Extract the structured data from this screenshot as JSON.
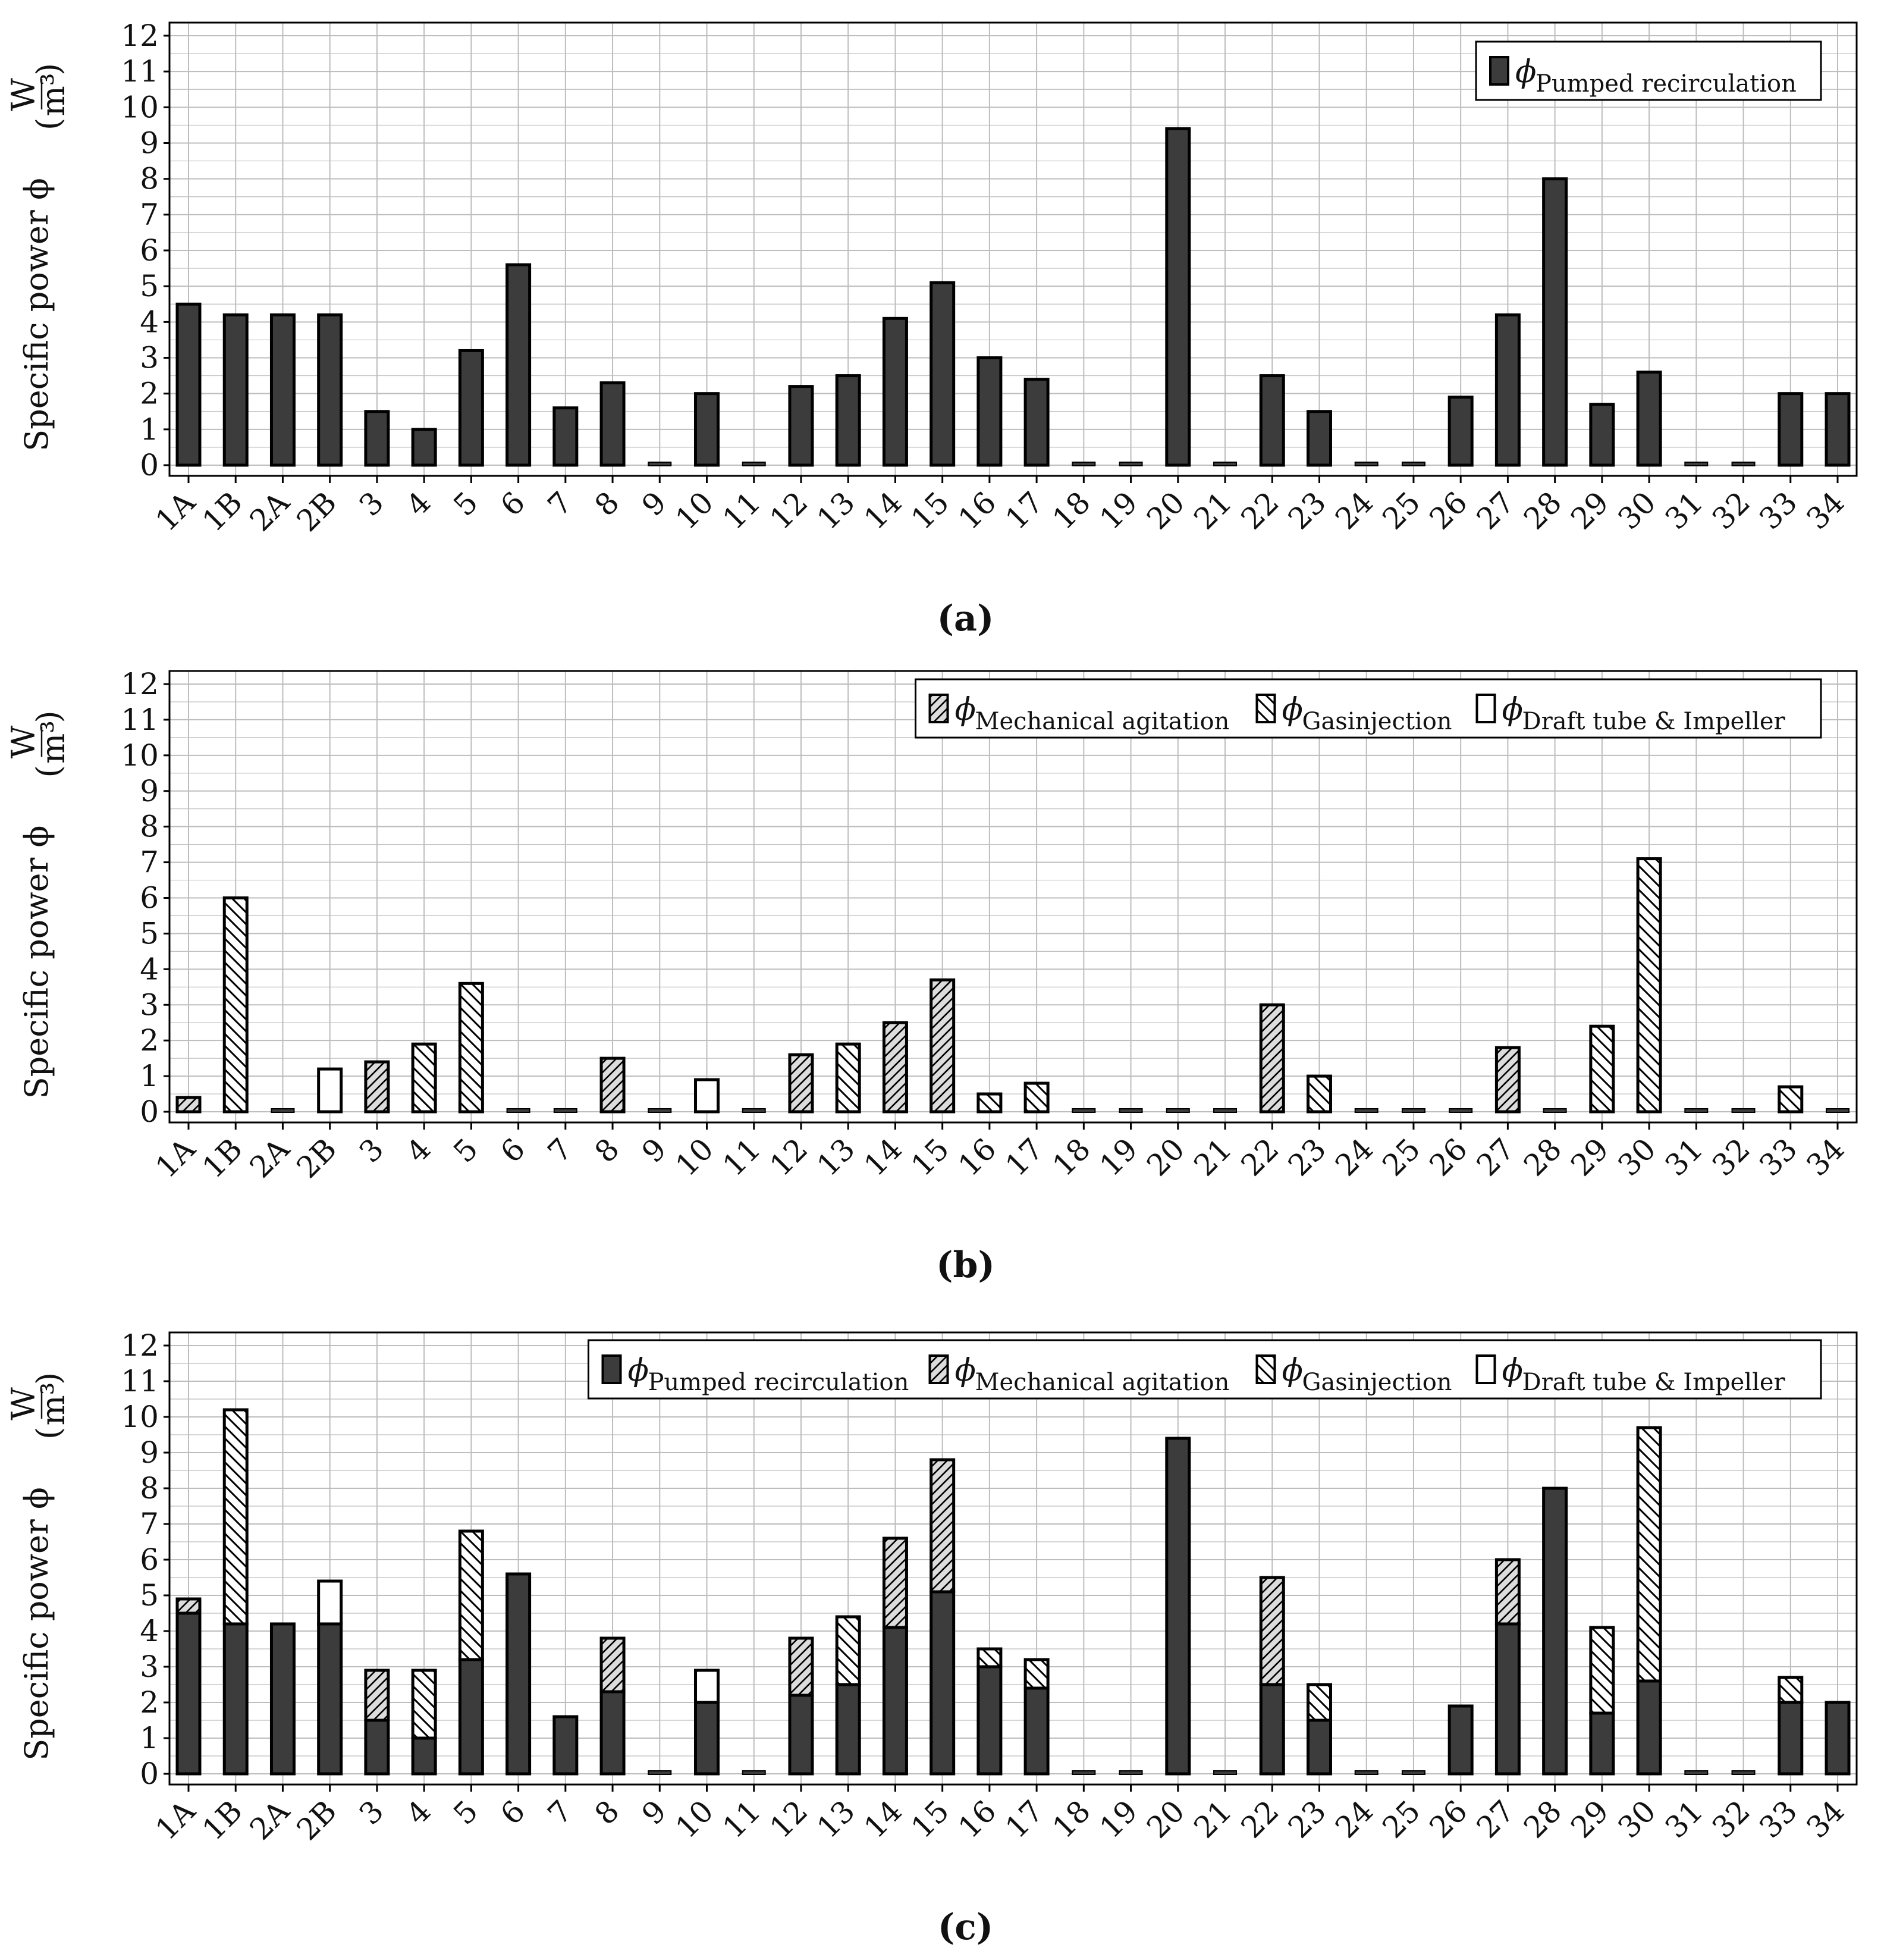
{
  "colors": {
    "pumped": "#3c3c3c",
    "mechanical_fill": "#dcdcdc",
    "gas_fill": "#ffffff",
    "draft_fill": "#ffffff",
    "grid": "#bdbdbd",
    "edge": "#000000"
  },
  "axis_symbol": "Specific power ϕ",
  "unit_numerator": "W",
  "unit_denominator": "m³",
  "chart_data": [
    {
      "type": "bar",
      "subfigure": "(a)",
      "stacked": false,
      "ylabel": "Specific power ϕ (W/m³)",
      "ylim": [
        0,
        12
      ],
      "yticks": [
        "0",
        "1",
        "2",
        "3",
        "4",
        "5",
        "6",
        "7",
        "8",
        "9",
        "10",
        "11",
        "12"
      ],
      "grid": true,
      "legend_position": "top-right",
      "categories": [
        "1A",
        "1B",
        "2A",
        "2B",
        "3",
        "4",
        "5",
        "6",
        "7",
        "8",
        "9",
        "10",
        "11",
        "12",
        "13",
        "14",
        "15",
        "16",
        "17",
        "18",
        "19",
        "20",
        "21",
        "22",
        "23",
        "24",
        "25",
        "26",
        "27",
        "28",
        "29",
        "30",
        "31",
        "32",
        "33",
        "34"
      ],
      "series": [
        {
          "key": "pumped",
          "symbol": "ϕ",
          "name": "Pumped recirculation",
          "values": [
            4.5,
            4.2,
            4.2,
            4.2,
            1.5,
            1.0,
            3.2,
            5.6,
            1.6,
            2.3,
            0,
            2.0,
            0,
            2.2,
            2.5,
            4.1,
            5.1,
            3.0,
            2.4,
            0,
            0,
            9.4,
            0,
            2.5,
            1.5,
            0,
            0,
            1.9,
            4.2,
            8.0,
            1.7,
            2.6,
            0,
            0,
            2.0,
            2.0
          ]
        }
      ]
    },
    {
      "type": "bar",
      "subfigure": "(b)",
      "stacked": true,
      "ylabel": "Specific power ϕ (W/m³)",
      "ylim": [
        0,
        12
      ],
      "yticks": [
        "0",
        "1",
        "2",
        "3",
        "4",
        "5",
        "6",
        "7",
        "8",
        "9",
        "10",
        "11",
        "12"
      ],
      "grid": true,
      "legend_position": "top-right",
      "categories": [
        "1A",
        "1B",
        "2A",
        "2B",
        "3",
        "4",
        "5",
        "6",
        "7",
        "8",
        "9",
        "10",
        "11",
        "12",
        "13",
        "14",
        "15",
        "16",
        "17",
        "18",
        "19",
        "20",
        "21",
        "22",
        "23",
        "24",
        "25",
        "26",
        "27",
        "28",
        "29",
        "30",
        "31",
        "32",
        "33",
        "34"
      ],
      "series": [
        {
          "key": "mechanical",
          "symbol": "ϕ",
          "name": "Mechanical agitation",
          "values": [
            0.4,
            0,
            0,
            0,
            1.4,
            0,
            0,
            0,
            0,
            1.5,
            0,
            0,
            0,
            1.6,
            0,
            2.5,
            3.7,
            0,
            0,
            0,
            0,
            0,
            0,
            3.0,
            0,
            0,
            0,
            0,
            1.8,
            0,
            0,
            0,
            0,
            0,
            0,
            0
          ]
        },
        {
          "key": "gas",
          "symbol": "ϕ",
          "name": "Gasinjection",
          "values": [
            0,
            6.0,
            0,
            0,
            0,
            1.9,
            3.6,
            0,
            0,
            0,
            0,
            0,
            0,
            0,
            1.9,
            0,
            0,
            0.5,
            0.8,
            0,
            0,
            0,
            0,
            0,
            1.0,
            0,
            0,
            0,
            0,
            0,
            2.4,
            7.1,
            0,
            0,
            0.7,
            0
          ]
        },
        {
          "key": "draft",
          "symbol": "ϕ",
          "name": "Draft tube & Impeller",
          "values": [
            0,
            0,
            0,
            1.2,
            0,
            0,
            0,
            0,
            0,
            0,
            0,
            0.9,
            0,
            0,
            0,
            0,
            0,
            0,
            0,
            0,
            0,
            0,
            0,
            0,
            0,
            0,
            0,
            0,
            0,
            0,
            0,
            0,
            0,
            0,
            0,
            0
          ]
        }
      ]
    },
    {
      "type": "bar",
      "subfigure": "(c)",
      "stacked": true,
      "ylabel": "Specific power ϕ (W/m³)",
      "ylim": [
        0,
        12
      ],
      "yticks": [
        "0",
        "1",
        "2",
        "3",
        "4",
        "5",
        "6",
        "7",
        "8",
        "9",
        "10",
        "11",
        "12"
      ],
      "grid": true,
      "legend_position": "top-right",
      "categories": [
        "1A",
        "1B",
        "2A",
        "2B",
        "3",
        "4",
        "5",
        "6",
        "7",
        "8",
        "9",
        "10",
        "11",
        "12",
        "13",
        "14",
        "15",
        "16",
        "17",
        "18",
        "19",
        "20",
        "21",
        "22",
        "23",
        "24",
        "25",
        "26",
        "27",
        "28",
        "29",
        "30",
        "31",
        "32",
        "33",
        "34"
      ],
      "series": [
        {
          "key": "pumped",
          "symbol": "ϕ",
          "name": "Pumped recirculation",
          "values": [
            4.5,
            4.2,
            4.2,
            4.2,
            1.5,
            1.0,
            3.2,
            5.6,
            1.6,
            2.3,
            0,
            2.0,
            0,
            2.2,
            2.5,
            4.1,
            5.1,
            3.0,
            2.4,
            0,
            0,
            9.4,
            0,
            2.5,
            1.5,
            0,
            0,
            1.9,
            4.2,
            8.0,
            1.7,
            2.6,
            0,
            0,
            2.0,
            2.0
          ]
        },
        {
          "key": "mechanical",
          "symbol": "ϕ",
          "name": "Mechanical agitation",
          "values": [
            0.4,
            0,
            0,
            0,
            1.4,
            0,
            0,
            0,
            0,
            1.5,
            0,
            0,
            0,
            1.6,
            0,
            2.5,
            3.7,
            0,
            0,
            0,
            0,
            0,
            0,
            3.0,
            0,
            0,
            0,
            0,
            1.8,
            0,
            0,
            0,
            0,
            0,
            0,
            0
          ]
        },
        {
          "key": "gas",
          "symbol": "ϕ",
          "name": "Gasinjection",
          "values": [
            0,
            6.0,
            0,
            0,
            0,
            1.9,
            3.6,
            0,
            0,
            0,
            0,
            0,
            0,
            0,
            1.9,
            0,
            0,
            0.5,
            0.8,
            0,
            0,
            0,
            0,
            0,
            1.0,
            0,
            0,
            0,
            0,
            0,
            2.4,
            7.1,
            0,
            0,
            0.7,
            0
          ]
        },
        {
          "key": "draft",
          "symbol": "ϕ",
          "name": "Draft tube & Impeller",
          "values": [
            0,
            0,
            0,
            1.2,
            0,
            0,
            0,
            0,
            0,
            0,
            0,
            0.9,
            0,
            0,
            0,
            0,
            0,
            0,
            0,
            0,
            0,
            0,
            0,
            0,
            0,
            0,
            0,
            0,
            0,
            0,
            0,
            0,
            0,
            0,
            0,
            0
          ]
        }
      ]
    }
  ]
}
